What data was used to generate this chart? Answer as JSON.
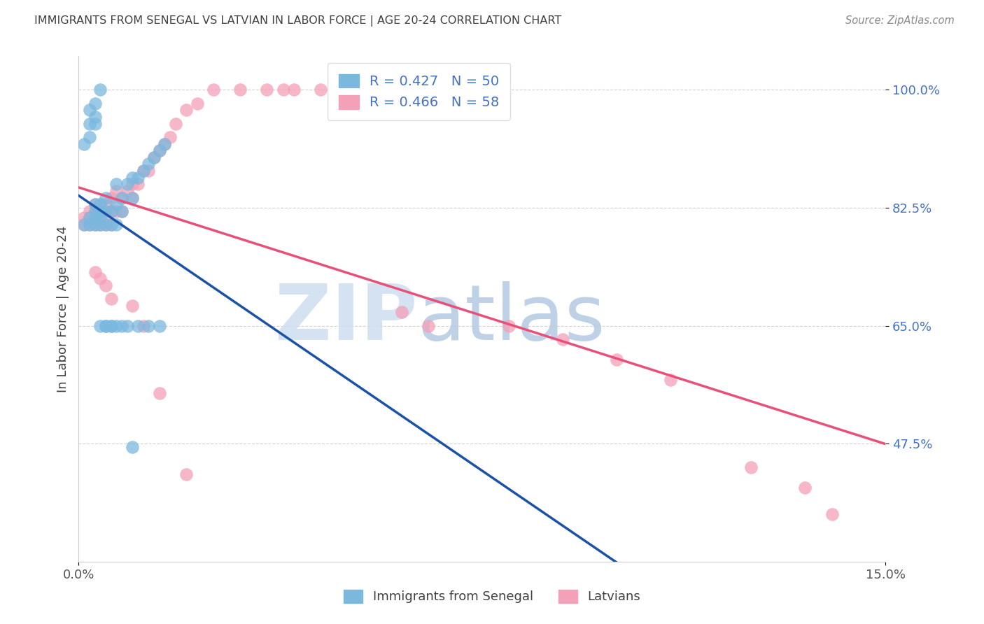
{
  "title": "IMMIGRANTS FROM SENEGAL VS LATVIAN IN LABOR FORCE | AGE 20-24 CORRELATION CHART",
  "source": "Source: ZipAtlas.com",
  "ylabel": "In Labor Force | Age 20-24",
  "xmin": 0.0,
  "xmax": 0.15,
  "ymin": 0.3,
  "ymax": 1.05,
  "ytick_positions": [
    0.475,
    0.65,
    0.825,
    1.0
  ],
  "ytick_labels": [
    "47.5%",
    "65.0%",
    "82.5%",
    "100.0%"
  ],
  "xtick_positions": [
    0.0,
    0.15
  ],
  "xtick_labels": [
    "0.0%",
    "15.0%"
  ],
  "legend_blue_label": "Immigrants from Senegal",
  "legend_pink_label": "Latvians",
  "R_blue": 0.427,
  "N_blue": 50,
  "R_pink": 0.466,
  "N_pink": 58,
  "blue_color": "#7ab8de",
  "pink_color": "#f4a0b8",
  "line_blue_color": "#1a52a8",
  "line_pink_color": "#e8507a",
  "watermark_zip_color": "#d0dff0",
  "watermark_atlas_color": "#b8cce4",
  "title_color": "#404040",
  "tick_color": "#4472c4",
  "blue_scatter_x": [
    0.001,
    0.002,
    0.002,
    0.003,
    0.003,
    0.003,
    0.003,
    0.004,
    0.004,
    0.004,
    0.004,
    0.005,
    0.005,
    0.005,
    0.006,
    0.006,
    0.007,
    0.007,
    0.007,
    0.008,
    0.008,
    0.009,
    0.01,
    0.01,
    0.011,
    0.012,
    0.013,
    0.014,
    0.015,
    0.016,
    0.001,
    0.002,
    0.002,
    0.002,
    0.003,
    0.003,
    0.003,
    0.004,
    0.004,
    0.005,
    0.005,
    0.006,
    0.006,
    0.007,
    0.008,
    0.009,
    0.01,
    0.011,
    0.013,
    0.015
  ],
  "blue_scatter_y": [
    0.8,
    0.8,
    0.81,
    0.8,
    0.81,
    0.82,
    0.83,
    0.8,
    0.81,
    0.82,
    0.83,
    0.8,
    0.82,
    0.84,
    0.8,
    0.82,
    0.8,
    0.83,
    0.86,
    0.82,
    0.84,
    0.86,
    0.84,
    0.87,
    0.87,
    0.88,
    0.89,
    0.9,
    0.91,
    0.92,
    0.92,
    0.93,
    0.95,
    0.97,
    0.95,
    0.96,
    0.98,
    1.0,
    0.65,
    0.65,
    0.65,
    0.65,
    0.65,
    0.65,
    0.65,
    0.65,
    0.47,
    0.65,
    0.65,
    0.65
  ],
  "pink_scatter_x": [
    0.001,
    0.001,
    0.002,
    0.002,
    0.002,
    0.003,
    0.003,
    0.003,
    0.003,
    0.004,
    0.004,
    0.004,
    0.005,
    0.005,
    0.005,
    0.006,
    0.006,
    0.006,
    0.007,
    0.007,
    0.008,
    0.008,
    0.009,
    0.01,
    0.01,
    0.011,
    0.012,
    0.013,
    0.014,
    0.015,
    0.016,
    0.017,
    0.018,
    0.02,
    0.022,
    0.025,
    0.03,
    0.035,
    0.038,
    0.04,
    0.045,
    0.06,
    0.065,
    0.08,
    0.09,
    0.1,
    0.11,
    0.125,
    0.135,
    0.14,
    0.003,
    0.004,
    0.005,
    0.006,
    0.01,
    0.012,
    0.015,
    0.02
  ],
  "pink_scatter_y": [
    0.8,
    0.81,
    0.8,
    0.81,
    0.82,
    0.8,
    0.81,
    0.82,
    0.83,
    0.8,
    0.82,
    0.83,
    0.8,
    0.81,
    0.83,
    0.8,
    0.82,
    0.84,
    0.82,
    0.85,
    0.82,
    0.84,
    0.85,
    0.84,
    0.86,
    0.86,
    0.88,
    0.88,
    0.9,
    0.91,
    0.92,
    0.93,
    0.95,
    0.97,
    0.98,
    1.0,
    1.0,
    1.0,
    1.0,
    1.0,
    1.0,
    0.67,
    0.65,
    0.65,
    0.63,
    0.6,
    0.57,
    0.44,
    0.41,
    0.37,
    0.73,
    0.72,
    0.71,
    0.69,
    0.68,
    0.65,
    0.55,
    0.43
  ]
}
